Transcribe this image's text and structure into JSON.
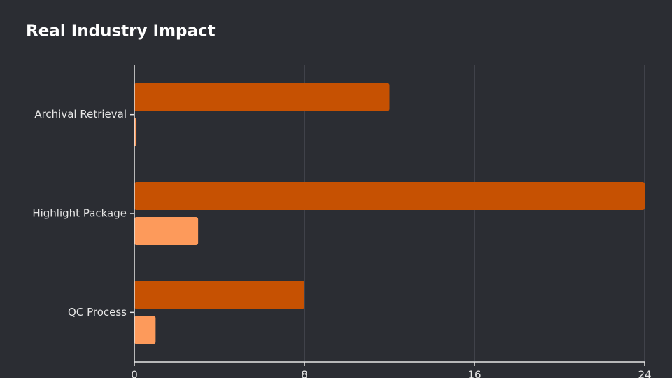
{
  "chart_data": {
    "type": "bar",
    "orientation": "horizontal",
    "title": "Real Industry Impact",
    "categories": [
      "Archival Retrieval",
      "Highlight Package",
      "QC Process"
    ],
    "series": [
      {
        "color": "#c65102",
        "values": [
          12,
          24,
          8
        ]
      },
      {
        "color": "#fd9a5b",
        "values": [
          0.1,
          3,
          1
        ]
      }
    ],
    "xlim": [
      0,
      24
    ],
    "xticks": [
      0,
      8,
      16,
      24
    ],
    "grid": true
  }
}
